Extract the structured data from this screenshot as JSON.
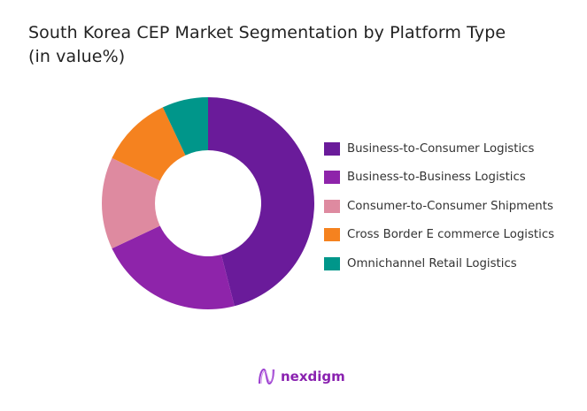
{
  "title_line1": "South Korea CEP Market Segmentation by Platform Type",
  "title_line2": "(in value%)",
  "chart_data": {
    "type": "pie",
    "variant": "donut",
    "title": "South Korea CEP Market Segmentation by Platform Type (in value%)",
    "categories": [
      "Business-to-Consumer Logistics",
      "Business-to-Business Logistics",
      "Consumer-to-Consumer Shipments",
      "Cross Border E commerce Logistics",
      "Omnichannel Retail Logistics"
    ],
    "values": [
      46,
      22,
      14,
      11,
      7
    ],
    "colors": [
      "#6a1b9a",
      "#8e24aa",
      "#de8aa0",
      "#f5821f",
      "#00968a"
    ],
    "legend_position": "right"
  },
  "legend": [
    {
      "label": "Business-to-Consumer Logistics",
      "color": "#6a1b9a"
    },
    {
      "label": "Business-to-Business Logistics",
      "color": "#8e24aa"
    },
    {
      "label": "Consumer-to-Consumer Shipments",
      "color": "#de8aa0"
    },
    {
      "label": "Cross Border E commerce Logistics",
      "color": "#f5821f"
    },
    {
      "label": "Omnichannel Retail Logistics",
      "color": "#00968a"
    }
  ],
  "logo": {
    "text": "nexdigm"
  }
}
